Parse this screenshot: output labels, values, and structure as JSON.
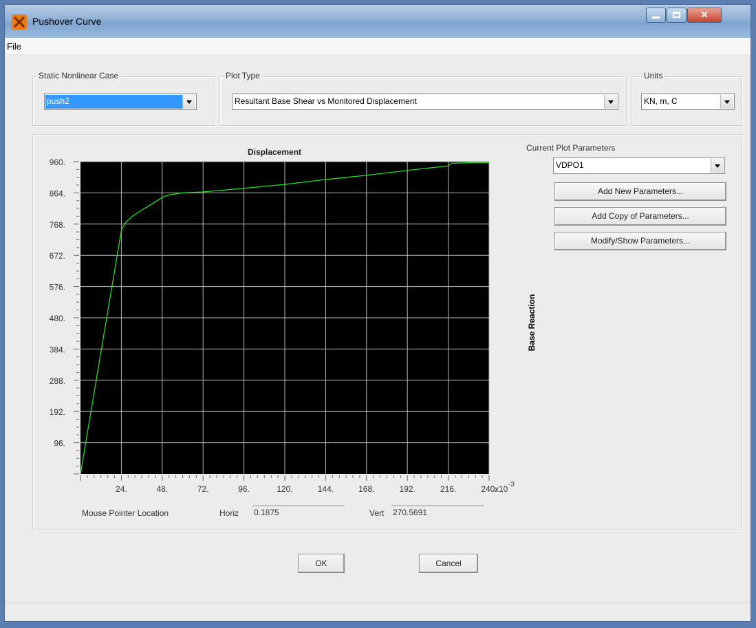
{
  "window": {
    "title": "Pushover Curve"
  },
  "menu": {
    "file": "File"
  },
  "static_case": {
    "label": "Static Nonlinear Case",
    "value": "push2"
  },
  "plot_type": {
    "label": "Plot Type",
    "value": "Resultant Base Shear vs Monitored Displacement"
  },
  "units": {
    "label": "Units",
    "value": "KN, m, C"
  },
  "params": {
    "label": "Current Plot Parameters",
    "value": "VDPO1",
    "add_new": "Add New Parameters...",
    "add_copy": "Add Copy of Parameters...",
    "modify": "Modify/Show Parameters..."
  },
  "readout": {
    "label": "Mouse Pointer Location",
    "horiz_label": "Horiz",
    "horiz": "0.1875",
    "vert_label": "Vert",
    "vert": "270.5691"
  },
  "buttons": {
    "ok": "OK",
    "cancel": "Cancel"
  },
  "colors": {
    "plot_bg": "#000000",
    "curve": "#22dd22",
    "grid": "#b8b8b8"
  },
  "chart_data": {
    "type": "line",
    "title": "Displacement",
    "xlabel": "",
    "ylabel": "Base Reaction",
    "x_multiplier": "x10",
    "x_multiplier_exp": "-3",
    "xlim": [
      0,
      240
    ],
    "ylim": [
      0,
      960
    ],
    "xticks": [
      "24.",
      "48.",
      "72.",
      "96.",
      "120.",
      "144.",
      "168.",
      "192.",
      "216.",
      "240."
    ],
    "yticks": [
      "96.",
      "192.",
      "288.",
      "384.",
      "480.",
      "576.",
      "672.",
      "768.",
      "864.",
      "960."
    ],
    "grid": true,
    "series": [
      {
        "x": [
          0,
          24,
          26,
          30,
          35,
          42,
          48,
          52,
          60,
          72,
          96,
          120,
          144,
          168,
          192,
          216,
          218,
          230,
          240
        ],
        "y": [
          0,
          748,
          770,
          790,
          808,
          830,
          850,
          858,
          864,
          867,
          878,
          890,
          905,
          918,
          933,
          947,
          955,
          957,
          957
        ]
      }
    ]
  }
}
